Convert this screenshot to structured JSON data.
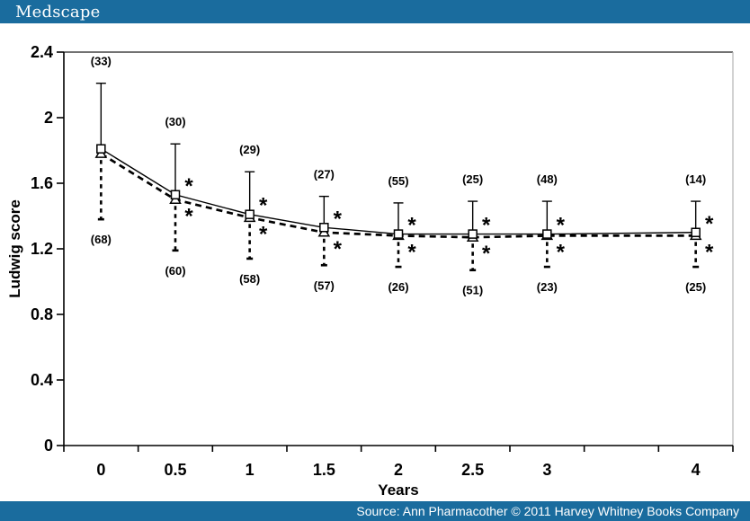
{
  "header": {
    "brand": "Medscape",
    "bar_color": "#1A6C9E"
  },
  "footer": {
    "text": "Source: Ann Pharmacother © 2011 Harvey Whitney Books Company",
    "bar_color": "#1A6C9E"
  },
  "chart_data": {
    "type": "line",
    "title": "",
    "xlabel": "Years",
    "ylabel": "Ludwig score",
    "categories": [
      "0",
      "0.5",
      "1",
      "1.5",
      "2",
      "2.5",
      "3",
      "",
      "4"
    ],
    "ylim": [
      0,
      2.4
    ],
    "ytick_values": [
      0,
      0.4,
      0.8,
      1.2,
      1.6,
      2,
      2.4
    ],
    "ytick_labels": [
      "0",
      "0.4",
      "0.8",
      "1.2",
      "1.6",
      "2",
      "2.4"
    ],
    "grid": false,
    "legend": "none",
    "sig_marker": "*",
    "axis_colors": {
      "axis": "#000000",
      "frame_top": "#444444",
      "frame_right": "#b5b5b5"
    },
    "series": [
      {
        "name": "solid-line-open-squares",
        "marker": "square",
        "line_style": "solid",
        "x_years": [
          0,
          0.5,
          1,
          1.5,
          2,
          2.5,
          3,
          4
        ],
        "values": [
          1.81,
          1.53,
          1.41,
          1.33,
          1.29,
          1.29,
          1.29,
          1.3
        ],
        "error_top": [
          2.21,
          1.84,
          1.67,
          1.52,
          1.48,
          1.49,
          1.49,
          1.49
        ],
        "n_labels": [
          "(33)",
          "(30)",
          "(29)",
          "(27)",
          "(55)",
          "(25)",
          "(48)",
          "(14)"
        ],
        "significant": [
          false,
          true,
          true,
          true,
          true,
          true,
          true,
          true
        ]
      },
      {
        "name": "dashed-line-open-triangles",
        "marker": "triangle",
        "line_style": "dashed",
        "x_years": [
          0,
          0.5,
          1,
          1.5,
          2,
          2.5,
          3,
          4
        ],
        "values": [
          1.78,
          1.5,
          1.39,
          1.3,
          1.28,
          1.27,
          1.28,
          1.28
        ],
        "error_bottom": [
          1.38,
          1.19,
          1.14,
          1.1,
          1.09,
          1.07,
          1.09,
          1.09
        ],
        "n_labels": [
          "(68)",
          "(60)",
          "(58)",
          "(57)",
          "(26)",
          "(51)",
          "(23)",
          "(25)"
        ],
        "significant": [
          false,
          true,
          true,
          true,
          true,
          true,
          true,
          true
        ]
      }
    ]
  }
}
